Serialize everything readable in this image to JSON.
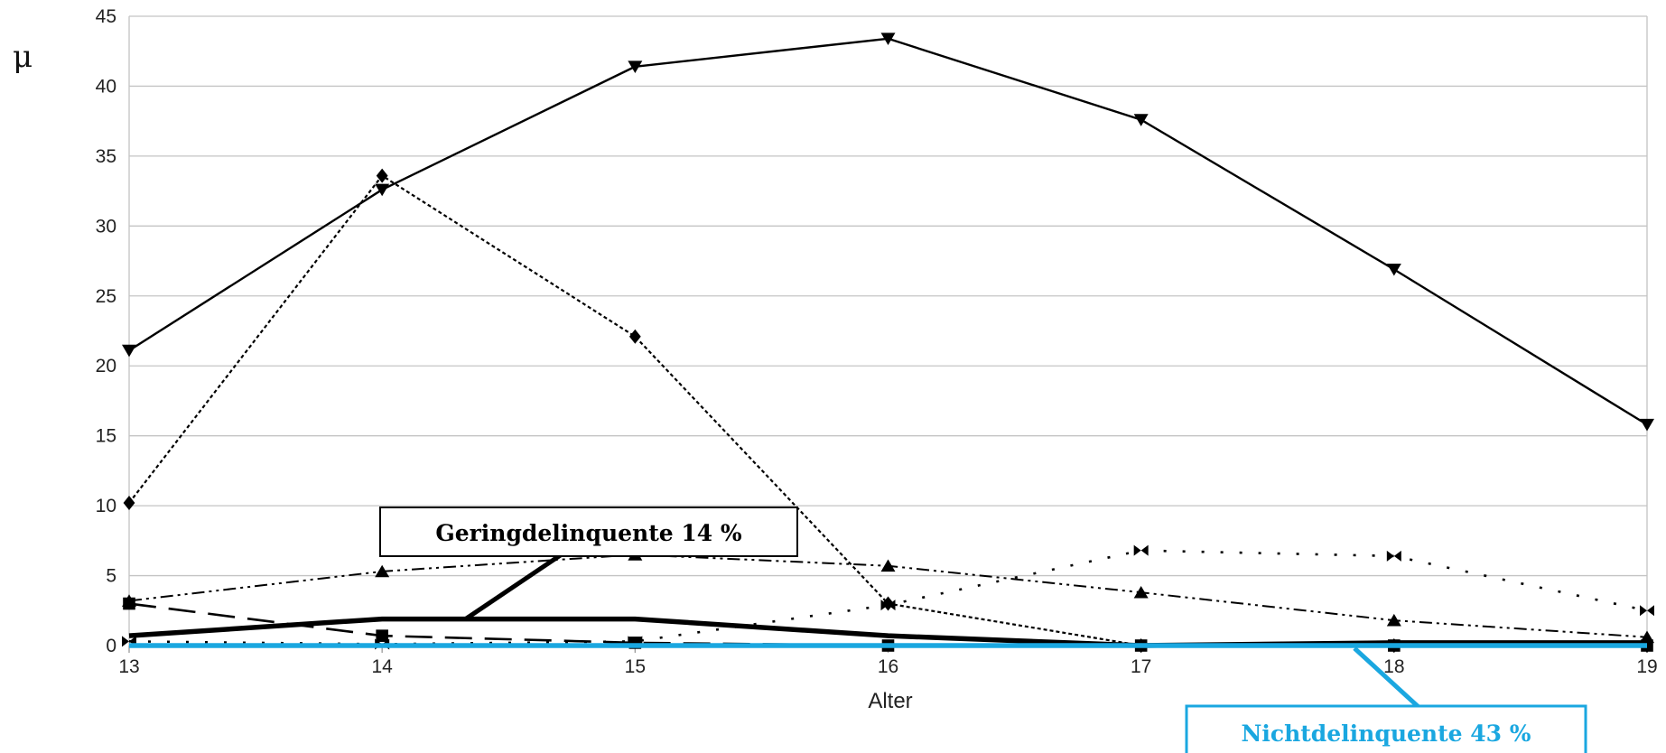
{
  "chart_data": {
    "type": "line",
    "title": "",
    "xlabel": "Alter",
    "ylabel": "μ",
    "x": [
      13,
      14,
      15,
      16,
      17,
      18,
      19
    ],
    "xlim": [
      13,
      19
    ],
    "ylim": [
      0,
      45
    ],
    "yticks": [
      0,
      5,
      10,
      15,
      20,
      25,
      30,
      35,
      40,
      45
    ],
    "grid": true,
    "series": [
      {
        "style": "solid-triangle-down",
        "color": "#000000",
        "values": [
          21.1,
          32.6,
          41.4,
          43.4,
          37.6,
          26.9,
          15.8
        ]
      },
      {
        "style": "dotted-diamond",
        "color": "#000000",
        "values": [
          10.2,
          33.6,
          22.1,
          3.0,
          0.0,
          0.0,
          0.0
        ]
      },
      {
        "style": "dashdotdot-triangle-up",
        "color": "#000000",
        "values": [
          3.2,
          5.3,
          6.5,
          5.7,
          3.8,
          1.8,
          0.6
        ]
      },
      {
        "style": "dotted-bowtie",
        "color": "#000000",
        "values": [
          0.3,
          0.1,
          0.3,
          2.9,
          6.8,
          6.4,
          2.5
        ]
      },
      {
        "style": "longdash-square",
        "color": "#000000",
        "values": [
          3.0,
          0.7,
          0.2,
          0.0,
          0.0,
          0.0,
          0.0
        ]
      },
      {
        "name": "Geringdelinquente 14 %",
        "style": "thick-solid",
        "color": "#000000",
        "values": [
          0.7,
          1.9,
          1.9,
          0.7,
          0.0,
          0.2,
          0.2
        ]
      },
      {
        "name": "Nichtdelinquente 43 %",
        "style": "thick-solid",
        "color": "#1aa7e0",
        "values": [
          0.0,
          0.0,
          0.0,
          0.0,
          0.0,
          0.0,
          0.0
        ]
      }
    ],
    "annotations": [
      {
        "text": "Geringdelinquente 14 %",
        "color": "#000000",
        "series": 5
      },
      {
        "text": "Nichtdelinquente 43 %",
        "color": "#1aa7e0",
        "series": 6
      }
    ]
  }
}
